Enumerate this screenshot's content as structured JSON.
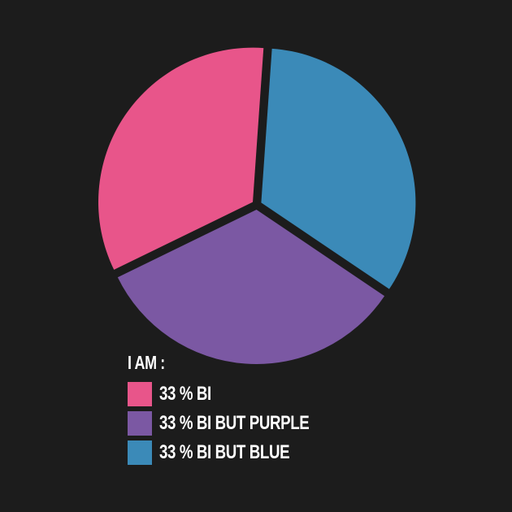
{
  "chart_data": {
    "type": "pie",
    "title": "",
    "legend_title": "I AM :",
    "legend_placement": "bottom-left",
    "slices": [
      {
        "label": "33 % BI BUT BLUE",
        "value": 33,
        "color": "#3b8ab8"
      },
      {
        "label": "33 % BI BUT PURPLE",
        "value": 33,
        "color": "#7b58a3"
      },
      {
        "label": "33 % BI",
        "value": 33,
        "color": "#e8558a"
      }
    ],
    "legend": [
      {
        "label": "33 % BI",
        "color": "#e8558a"
      },
      {
        "label": "33 % BI BUT PURPLE",
        "color": "#7b58a3"
      },
      {
        "label": "33 % BI BUT BLUE",
        "color": "#3b8ab8"
      }
    ]
  },
  "background": "#1c1c1c"
}
